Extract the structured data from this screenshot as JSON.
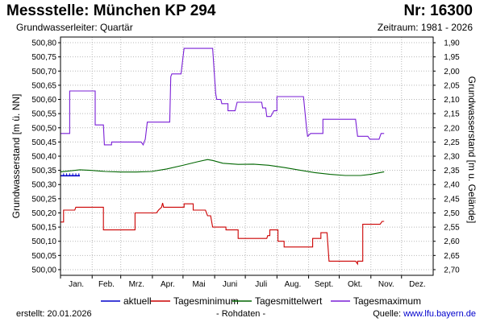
{
  "header": {
    "title": "Messstelle: München KP 294",
    "number": "Nr: 16300",
    "subtitle": "Grundwasserleiter: Quartär",
    "period": "Zeitraum: 1981 - 2026"
  },
  "footer": {
    "created": "erstellt:  20.01.2026",
    "raw": "- Rohdaten -",
    "source_label": "Quelle: ",
    "source_link": "www.lfu.bayern.de"
  },
  "colors": {
    "aktuell": "#0000cc",
    "min": "#cc0000",
    "mean": "#006600",
    "max": "#7a1fd6"
  },
  "chart_data": {
    "type": "line",
    "ylabel": "Grundwasserstand [m ü. NN]",
    "ylabel_right": "Grundwasserstand [m u. Gelände]",
    "ylim": [
      499.98,
      500.82
    ],
    "y_ticks": [
      "500,80",
      "500,75",
      "500,70",
      "500,65",
      "500,60",
      "500,55",
      "500,50",
      "500,45",
      "500,40",
      "500,35",
      "500,30",
      "500,25",
      "500,20",
      "500,15",
      "500,10",
      "500,05",
      "500,00"
    ],
    "y_tick_values": [
      500.8,
      500.75,
      500.7,
      500.65,
      500.6,
      500.55,
      500.5,
      500.45,
      500.4,
      500.35,
      500.3,
      500.25,
      500.2,
      500.15,
      500.1,
      500.05,
      500.0
    ],
    "y2_ticks": [
      "1,90",
      "1,95",
      "2,00",
      "2,05",
      "2,10",
      "2,15",
      "2,20",
      "2,25",
      "2,30",
      "2,35",
      "2,40",
      "2,45",
      "2,50",
      "2,55",
      "2,60",
      "2,65",
      "2,70"
    ],
    "xlim": [
      1,
      366
    ],
    "months": [
      "Jan.",
      "Feb.",
      "Mrz.",
      "Apr.",
      "Mai",
      "Juni",
      "Juli",
      "Aug.",
      "Sept.",
      "Okt.",
      "Nov.",
      "Dez."
    ],
    "legend": [
      "aktuell",
      "Tagesminimum",
      "Tagesmittelwert",
      "Tagesmaximum"
    ],
    "grid": true,
    "series": [
      {
        "name": "aktuell",
        "key": "aktuell",
        "points": [
          [
            1,
            500.331
          ],
          [
            20,
            500.331
          ]
        ]
      },
      {
        "name": "Tagesminimum",
        "key": "min",
        "points": [
          [
            1,
            500.168
          ],
          [
            4,
            500.168
          ],
          [
            4,
            500.21
          ],
          [
            15,
            500.21
          ],
          [
            16,
            500.22
          ],
          [
            43,
            500.22
          ],
          [
            43,
            500.14
          ],
          [
            74,
            500.14
          ],
          [
            74,
            500.2
          ],
          [
            95,
            500.2
          ],
          [
            97,
            500.21
          ],
          [
            100,
            500.22
          ],
          [
            101,
            500.235
          ],
          [
            102,
            500.22
          ],
          [
            122,
            500.22
          ],
          [
            122,
            500.232
          ],
          [
            131,
            500.232
          ],
          [
            131,
            500.21
          ],
          [
            143,
            500.21
          ],
          [
            145,
            500.19
          ],
          [
            148,
            500.19
          ],
          [
            150,
            500.15
          ],
          [
            163,
            500.15
          ],
          [
            163,
            500.14
          ],
          [
            175,
            500.14
          ],
          [
            175,
            500.11
          ],
          [
            203,
            500.11
          ],
          [
            204,
            500.12
          ],
          [
            206,
            500.12
          ],
          [
            206,
            500.14
          ],
          [
            214,
            500.14
          ],
          [
            214,
            500.1
          ],
          [
            220,
            500.1
          ],
          [
            220,
            500.08
          ],
          [
            248,
            500.08
          ],
          [
            248,
            500.11
          ],
          [
            256,
            500.11
          ],
          [
            256,
            500.13
          ],
          [
            262,
            500.13
          ],
          [
            264,
            500.03
          ],
          [
            290,
            500.03
          ],
          [
            290,
            500.03
          ],
          [
            292,
            500.02
          ],
          [
            292,
            500.03
          ],
          [
            297,
            500.03
          ],
          [
            297,
            500.16
          ],
          [
            314,
            500.16
          ],
          [
            316,
            500.17
          ],
          [
            318,
            500.17
          ]
        ]
      },
      {
        "name": "Tagesmittelwert",
        "key": "mean",
        "points": [
          [
            1,
            500.345
          ],
          [
            10,
            500.348
          ],
          [
            20,
            500.352
          ],
          [
            30,
            500.35
          ],
          [
            45,
            500.346
          ],
          [
            60,
            500.344
          ],
          [
            75,
            500.344
          ],
          [
            90,
            500.346
          ],
          [
            105,
            500.355
          ],
          [
            120,
            500.367
          ],
          [
            135,
            500.38
          ],
          [
            145,
            500.388
          ],
          [
            150,
            500.385
          ],
          [
            160,
            500.375
          ],
          [
            175,
            500.371
          ],
          [
            190,
            500.372
          ],
          [
            205,
            500.368
          ],
          [
            220,
            500.36
          ],
          [
            235,
            500.351
          ],
          [
            250,
            500.342
          ],
          [
            265,
            500.336
          ],
          [
            280,
            500.332
          ],
          [
            295,
            500.332
          ],
          [
            305,
            500.336
          ],
          [
            318,
            500.345
          ]
        ]
      },
      {
        "name": "Tagesmaximum",
        "key": "max",
        "points": [
          [
            1,
            500.48
          ],
          [
            10,
            500.48
          ],
          [
            10,
            500.63
          ],
          [
            35,
            500.63
          ],
          [
            35,
            500.51
          ],
          [
            43,
            500.51
          ],
          [
            44,
            500.44
          ],
          [
            51,
            500.44
          ],
          [
            51,
            500.45
          ],
          [
            80,
            500.45
          ],
          [
            82,
            500.44
          ],
          [
            84,
            500.46
          ],
          [
            86,
            500.52
          ],
          [
            108,
            500.52
          ],
          [
            109,
            500.68
          ],
          [
            110,
            500.69
          ],
          [
            119,
            500.69
          ],
          [
            122,
            500.78
          ],
          [
            150,
            500.78
          ],
          [
            153,
            500.62
          ],
          [
            154,
            500.6
          ],
          [
            158,
            500.6
          ],
          [
            159,
            500.585
          ],
          [
            165,
            500.585
          ],
          [
            165,
            500.56
          ],
          [
            172,
            500.56
          ],
          [
            174,
            500.59
          ],
          [
            198,
            500.59
          ],
          [
            199,
            500.57
          ],
          [
            202,
            500.57
          ],
          [
            203,
            500.54
          ],
          [
            207,
            500.54
          ],
          [
            210,
            500.56
          ],
          [
            213,
            500.56
          ],
          [
            213,
            500.61
          ],
          [
            239,
            500.61
          ],
          [
            242,
            500.5
          ],
          [
            243,
            500.47
          ],
          [
            246,
            500.48
          ],
          [
            258,
            500.48
          ],
          [
            258,
            500.53
          ],
          [
            290,
            500.53
          ],
          [
            292,
            500.47
          ],
          [
            302,
            500.47
          ],
          [
            304,
            500.46
          ],
          [
            313,
            500.46
          ],
          [
            315,
            500.48
          ],
          [
            318,
            500.48
          ]
        ]
      }
    ]
  }
}
